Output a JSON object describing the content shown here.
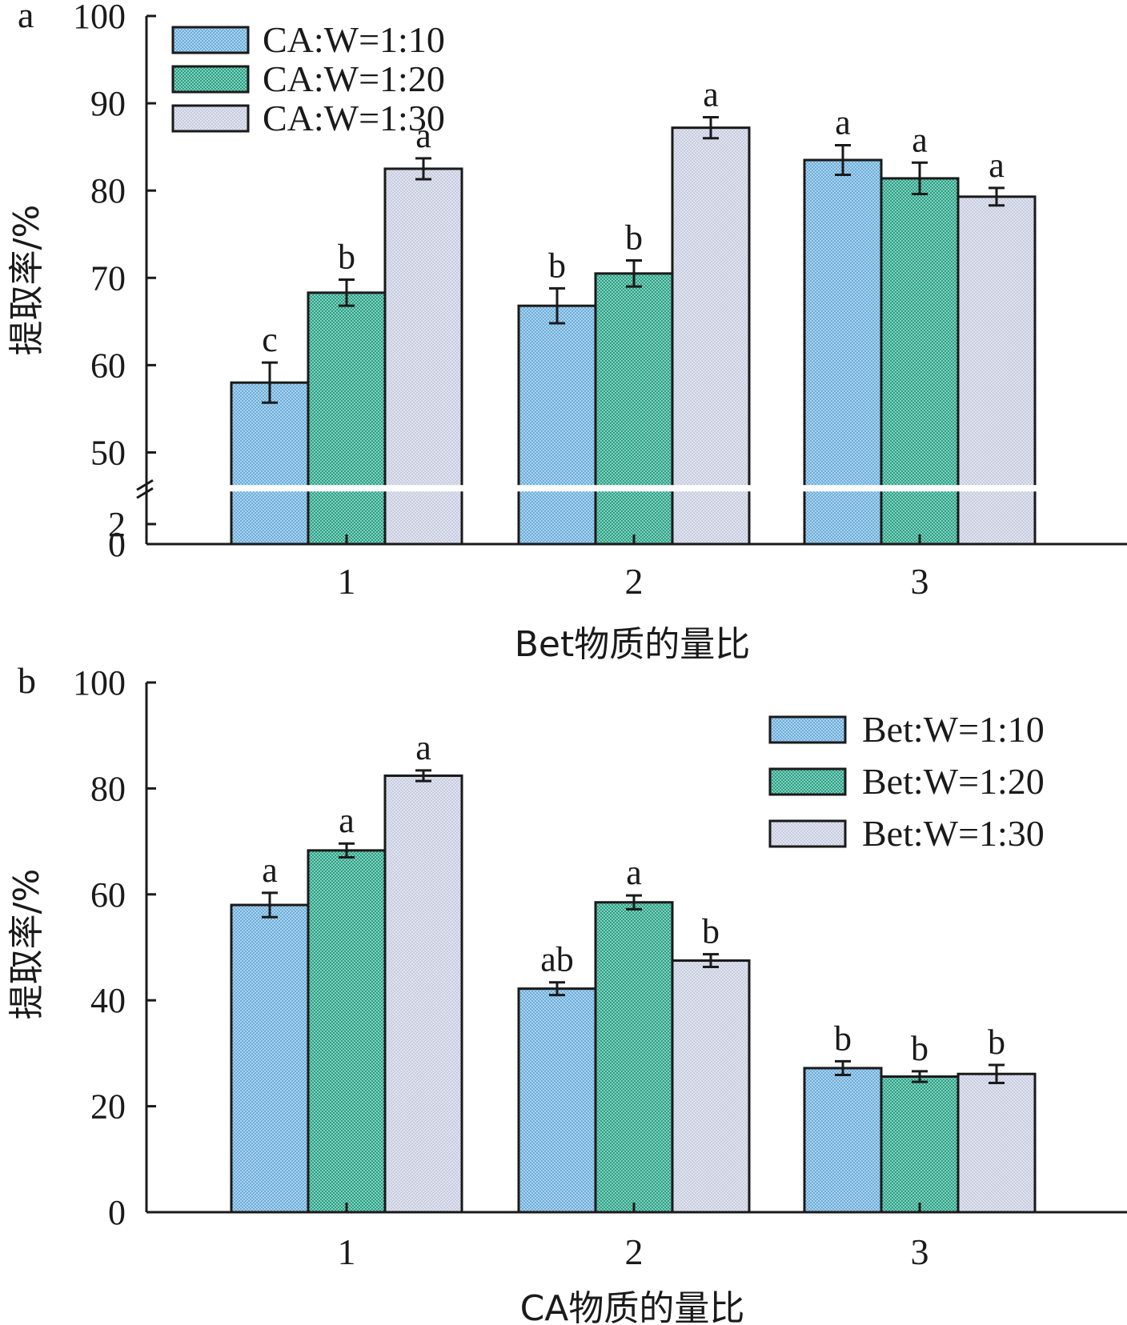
{
  "chart_data": [
    {
      "panel_label": "a",
      "type": "bar",
      "categories": [
        "1",
        "2",
        "3"
      ],
      "xlabel": "Bet物质的量比",
      "ylabel": "提取率/%",
      "ylim": [
        0,
        100
      ],
      "axis_break": [
        2,
        50
      ],
      "yticks": [
        0,
        2,
        50,
        60,
        70,
        80,
        90,
        100
      ],
      "legend_position": "top-left",
      "series": [
        {
          "name": "CA:W=1:10",
          "color": "#6aaedc",
          "values": [
            58.0,
            66.8,
            83.5
          ],
          "errors": [
            2.3,
            2.0,
            1.7
          ],
          "letters": [
            "c",
            "b",
            "a"
          ]
        },
        {
          "name": "CA:W=1:20",
          "color": "#27a386",
          "values": [
            68.3,
            70.5,
            81.4
          ],
          "errors": [
            1.5,
            1.5,
            1.8
          ],
          "letters": [
            "b",
            "b",
            "a"
          ]
        },
        {
          "name": "CA:W=1:30",
          "color": "#c7cce0",
          "values": [
            82.5,
            87.2,
            79.3
          ],
          "errors": [
            1.2,
            1.2,
            1.0
          ],
          "letters": [
            "a",
            "a",
            "a"
          ]
        }
      ]
    },
    {
      "panel_label": "b",
      "type": "bar",
      "categories": [
        "1",
        "2",
        "3"
      ],
      "xlabel": "CA物质的量比",
      "ylabel": "提取率/%",
      "ylim": [
        0,
        100
      ],
      "yticks": [
        0,
        20,
        40,
        60,
        80,
        100
      ],
      "legend_position": "top-right",
      "series": [
        {
          "name": "Bet:W=1:10",
          "color": "#6aaedc",
          "values": [
            58.0,
            42.2,
            27.2
          ],
          "errors": [
            2.3,
            1.2,
            1.3
          ],
          "letters": [
            "a",
            "ab",
            "b"
          ]
        },
        {
          "name": "Bet:W=1:20",
          "color": "#27a386",
          "values": [
            68.3,
            58.5,
            25.6
          ],
          "errors": [
            1.3,
            1.3,
            1.0
          ],
          "letters": [
            "a",
            "a",
            "b"
          ]
        },
        {
          "name": "Bet:W=1:30",
          "color": "#c7cce0",
          "values": [
            82.4,
            47.5,
            26.1
          ],
          "errors": [
            1.0,
            1.2,
            1.7
          ],
          "letters": [
            "a",
            "b",
            "b"
          ]
        }
      ]
    }
  ]
}
